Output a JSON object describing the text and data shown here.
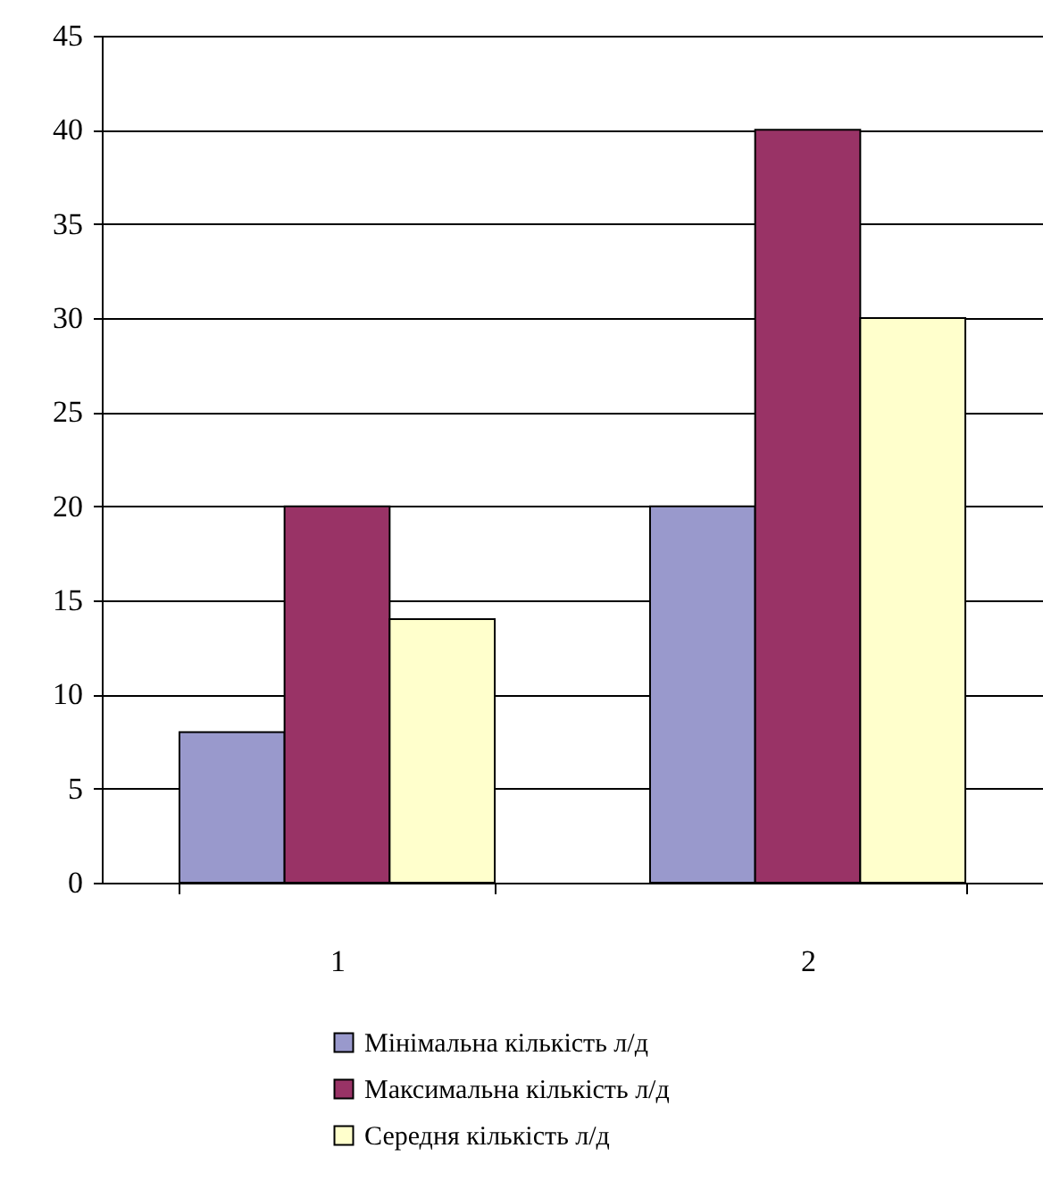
{
  "chart_data": {
    "type": "bar",
    "categories": [
      "1",
      "2"
    ],
    "series": [
      {
        "name": "Мінімальна кількість л/д",
        "color": "#9999cc",
        "values": [
          8,
          20
        ]
      },
      {
        "name": "Максимальна кількість л/д",
        "color": "#993366",
        "values": [
          20,
          40
        ]
      },
      {
        "name": "Середня кількість л/д",
        "color": "#ffffcc",
        "values": [
          14,
          30
        ]
      }
    ],
    "ylim": [
      0,
      45
    ],
    "yticks": [
      0,
      5,
      10,
      15,
      20,
      25,
      30,
      35,
      40,
      45
    ],
    "grid": "y",
    "legend": "bottom"
  }
}
